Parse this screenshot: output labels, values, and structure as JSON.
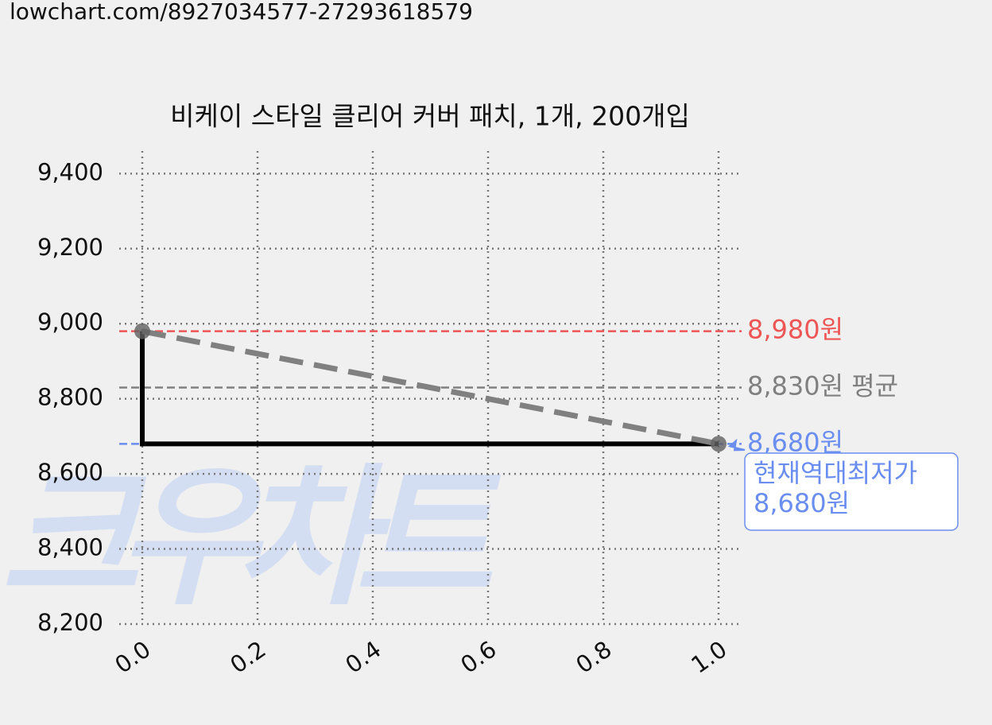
{
  "url": "lowchart.com/8927034577-27293618579",
  "watermark": "크우차트",
  "chart_data": {
    "type": "line",
    "title": "비케이 스타일 클리어 커버 패치, 1개, 200개입",
    "x": [
      0,
      1
    ],
    "values": [
      8980,
      8680
    ],
    "step": "pre",
    "color": "#000000",
    "trend_color": "#808080",
    "point_color": "#606060",
    "xlim": [
      -0.04,
      1.04
    ],
    "ylim": [
      8200,
      9460
    ],
    "xticks": [
      {
        "value": 0,
        "label": "0.0"
      },
      {
        "value": 0.2,
        "label": "0.2"
      },
      {
        "value": 0.4,
        "label": "0.4"
      },
      {
        "value": 0.6,
        "label": "0.6"
      },
      {
        "value": 0.8,
        "label": "0.8"
      },
      {
        "value": 1,
        "label": "1.0"
      }
    ],
    "yticks": [
      {
        "value": 8200,
        "label": "8,200"
      },
      {
        "value": 8400,
        "label": "8,400"
      },
      {
        "value": 8600,
        "label": "8,600"
      },
      {
        "value": 8800,
        "label": "8,800"
      },
      {
        "value": 9000,
        "label": "9,000"
      },
      {
        "value": 9200,
        "label": "9,200"
      },
      {
        "value": 9400,
        "label": "9,400"
      }
    ],
    "grid": true,
    "hlines": [
      {
        "value": 8980,
        "label": "8,980원",
        "color": "#ee5555"
      },
      {
        "value": 8830,
        "label": "8,830원 평균",
        "color": "#808080"
      },
      {
        "value": 8680,
        "label": "8,680원",
        "color": "#6a8ef0"
      }
    ],
    "annotation": {
      "lines": [
        "현재역대최저가",
        "8,680원"
      ],
      "color": "#6a8ef0"
    }
  }
}
